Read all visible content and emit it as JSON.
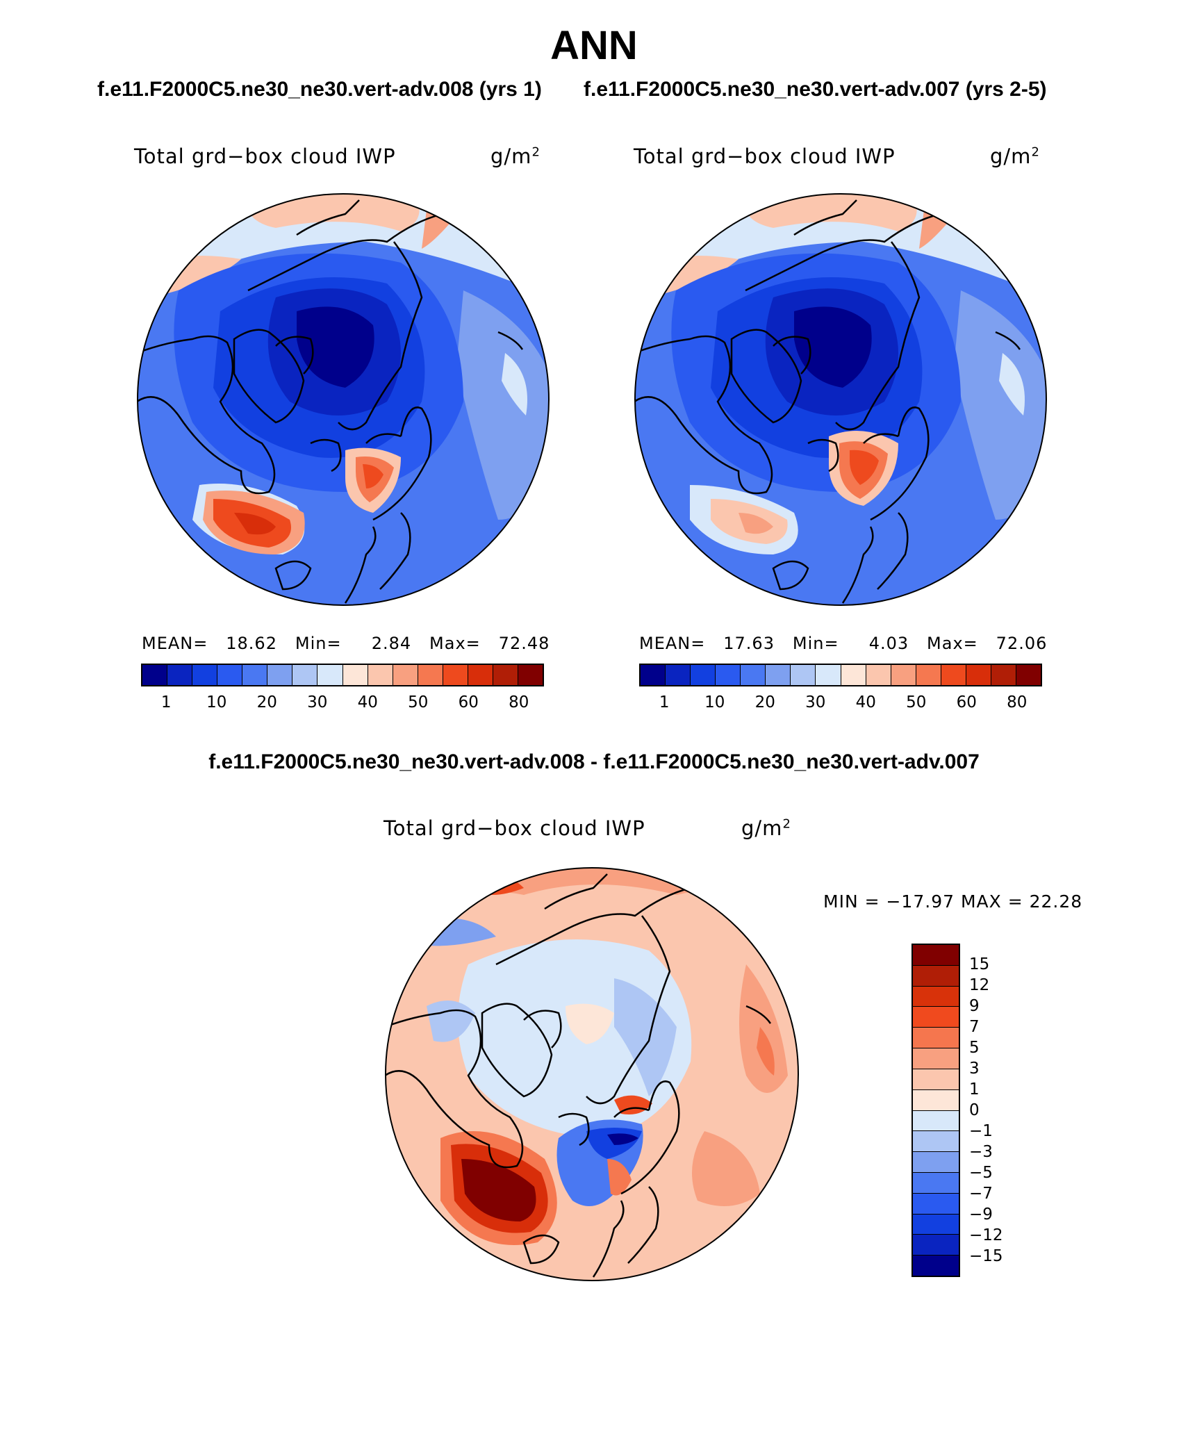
{
  "title": "ANN",
  "top_cases": {
    "left": "f.e11.F2000C5.ne30_ne30.vert-adv.008 (yrs 1)",
    "right": "f.e11.F2000C5.ne30_ne30.vert-adv.007 (yrs 2-5)"
  },
  "diff_case": "f.e11.F2000C5.ne30_ne30.vert-adv.008 - f.e11.F2000C5.ne30_ne30.vert-adv.007",
  "panels": {
    "left": {
      "variable": "Total grd−box cloud IWP",
      "units": "g/m",
      "units_exp": "2",
      "mean_label": "MEAN=",
      "mean": "18.62",
      "min_label": "Min=",
      "min": "2.84",
      "max_label": "Max=",
      "max": "72.48"
    },
    "right": {
      "variable": "Total grd−box cloud IWP",
      "units": "g/m",
      "units_exp": "2",
      "mean_label": "MEAN=",
      "mean": "17.63",
      "min_label": "Min=",
      "min": "4.03",
      "max_label": "Max=",
      "max": "72.06"
    },
    "diff": {
      "variable": "Total grd−box cloud IWP",
      "units": "g/m",
      "units_exp": "2",
      "minmax": "MIN = −17.97 MAX =   22.28"
    }
  },
  "legend_main": {
    "colors": [
      "#00008b",
      "#0a24c0",
      "#1240e0",
      "#2a5af0",
      "#4a78f2",
      "#7ea0f0",
      "#aec6f4",
      "#d8e8fa",
      "#fde6d8",
      "#fbc6ae",
      "#f8a080",
      "#f57850",
      "#ee4a1e",
      "#d82e0a",
      "#b01e06",
      "#800000"
    ],
    "ticks": [
      "1",
      "10",
      "20",
      "30",
      "40",
      "50",
      "60",
      "80"
    ]
  },
  "legend_diff": {
    "colors": [
      "#800000",
      "#b01e06",
      "#d8320a",
      "#f04a1e",
      "#f5764e",
      "#f8a080",
      "#fbc6ae",
      "#fde6d8",
      "#d8e8fa",
      "#aec6f4",
      "#7ea0f0",
      "#4a78f2",
      "#2a5af0",
      "#1240e0",
      "#0a24c0",
      "#00008b"
    ],
    "ticks": [
      "15",
      "12",
      "9",
      "7",
      "5",
      "3",
      "1",
      "0",
      "−1",
      "−3",
      "−5",
      "−7",
      "−9",
      "−12",
      "−15"
    ]
  }
}
